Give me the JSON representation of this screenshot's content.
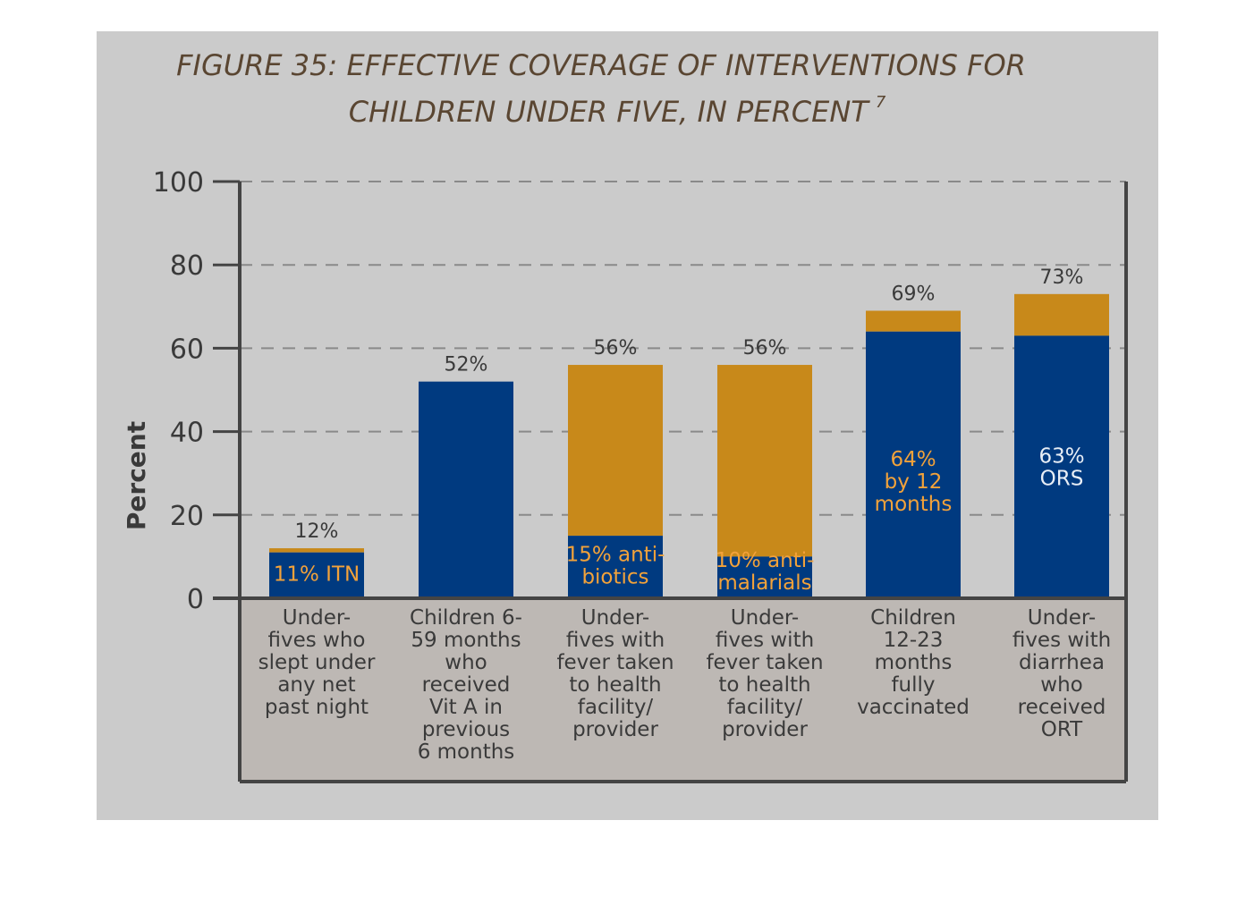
{
  "chart_data": {
    "type": "bar",
    "title_line1": "FIGURE 35: EFFECTIVE COVERAGE OF INTERVENTIONS FOR",
    "title_line2": "CHILDREN UNDER FIVE, IN PERCENT",
    "title_superscript": "7",
    "ylabel": "Percent",
    "ylim": [
      0,
      100
    ],
    "yticks": [
      "0",
      "20",
      "40",
      "60",
      "80",
      "100"
    ],
    "grid": true,
    "categories": [
      [
        "Under-",
        "fives who",
        "slept under",
        "any net",
        "past night"
      ],
      [
        "Children 6-",
        "59 months",
        "who",
        "received",
        "Vit A in",
        "previous",
        "6 months"
      ],
      [
        "Under-",
        "fives with",
        "fever taken",
        "to health",
        "facility/",
        "provider"
      ],
      [
        "Under-",
        "fives with",
        "fever taken",
        "to health",
        "facility/",
        "provider"
      ],
      [
        "Children",
        "12-23",
        "months",
        "fully",
        "vaccinated"
      ],
      [
        "Under-",
        "fives with",
        "diarrhea",
        "who",
        "received",
        "ORT"
      ]
    ],
    "totals": [
      12,
      52,
      56,
      56,
      69,
      73
    ],
    "total_labels": [
      "12%",
      "52%",
      "56%",
      "56%",
      "69%",
      "73%"
    ],
    "effective": [
      11,
      null,
      15,
      10,
      64,
      63
    ],
    "effective_labels": [
      [
        "11% ITN"
      ],
      [],
      [
        "15% anti-",
        "biotics"
      ],
      [
        "10% anti-",
        "malarials"
      ],
      [
        "64%",
        "by 12",
        "months"
      ],
      [
        "63%",
        "ORS"
      ]
    ],
    "colors": {
      "background": "#cbcbcb",
      "plot_panel": "#bdb8b4",
      "effective": "#003a80",
      "total": "#c8891a",
      "axis": "#444444",
      "grid": "#8a8a8a",
      "title": "#5a4632",
      "effective_label": "#f2a23a",
      "text": "#3a3a3a"
    }
  }
}
